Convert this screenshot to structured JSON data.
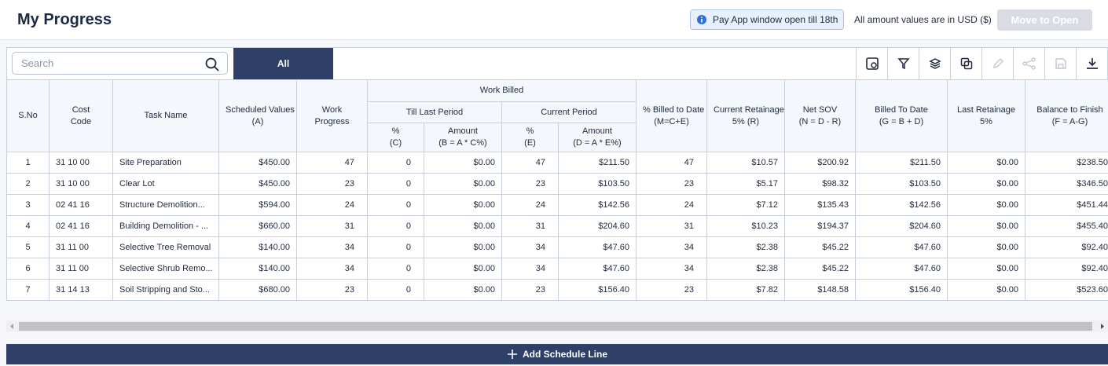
{
  "header": {
    "title": "My Progress",
    "notice": "Pay App window open till 18th",
    "currency_note": "All amount values are in USD ($)",
    "move_button": "Move to Open"
  },
  "toolbar": {
    "search_placeholder": "Search",
    "tab": "All"
  },
  "table": {
    "group": "Work Billed",
    "subgroups": [
      "Till Last Period",
      "Current Period"
    ],
    "columns": [
      [
        "S.No"
      ],
      [
        "Cost",
        "Code"
      ],
      [
        "Task Name"
      ],
      [
        "Scheduled Values",
        "(A)"
      ],
      [
        "Work",
        "Progress"
      ],
      [
        "%",
        "(C)"
      ],
      [
        "Amount",
        "(B = A * C%)"
      ],
      [
        "%",
        "(E)"
      ],
      [
        "Amount",
        "(D = A * E%)"
      ],
      [
        "% Billed to Date",
        "(M=C+E)"
      ],
      [
        "Current Retainage",
        "5% (R)"
      ],
      [
        "Net SOV",
        "(N = D - R)"
      ],
      [
        "Billed To Date",
        "(G = B + D)"
      ],
      [
        "Last Retainage",
        "5%"
      ],
      [
        "Balance to Finish",
        "(F = A-G)"
      ]
    ],
    "rows": [
      [
        1,
        "31 10 00",
        "Site Preparation",
        "$450.00",
        47,
        0,
        "$0.00",
        47,
        "$211.50",
        47,
        "$10.57",
        "$200.92",
        "$211.50",
        "$0.00",
        "$238.50"
      ],
      [
        2,
        "31 10 00",
        "Clear Lot",
        "$450.00",
        23,
        0,
        "$0.00",
        23,
        "$103.50",
        23,
        "$5.17",
        "$98.32",
        "$103.50",
        "$0.00",
        "$346.50"
      ],
      [
        3,
        "02 41 16",
        "Structure Demolition...",
        "$594.00",
        24,
        0,
        "$0.00",
        24,
        "$142.56",
        24,
        "$7.12",
        "$135.43",
        "$142.56",
        "$0.00",
        "$451.44"
      ],
      [
        4,
        "02 41 16",
        "Building Demolition - ...",
        "$660.00",
        31,
        0,
        "$0.00",
        31,
        "$204.60",
        31,
        "$10.23",
        "$194.37",
        "$204.60",
        "$0.00",
        "$455.40"
      ],
      [
        5,
        "31 11 00",
        "Selective Tree Removal",
        "$140.00",
        34,
        0,
        "$0.00",
        34,
        "$47.60",
        34,
        "$2.38",
        "$45.22",
        "$47.60",
        "$0.00",
        "$92.40"
      ],
      [
        6,
        "31 11 00",
        "Selective Shrub Remo...",
        "$140.00",
        34,
        0,
        "$0.00",
        34,
        "$47.60",
        34,
        "$2.38",
        "$45.22",
        "$47.60",
        "$0.00",
        "$92.40"
      ],
      [
        7,
        "31 14 13",
        "Soil Stripping and Sto...",
        "$680.00",
        23,
        0,
        "$0.00",
        23,
        "$156.40",
        23,
        "$7.82",
        "$148.58",
        "$156.40",
        "$0.00",
        "$523.60"
      ]
    ]
  },
  "footer": {
    "add_button": "Add Schedule Line"
  }
}
